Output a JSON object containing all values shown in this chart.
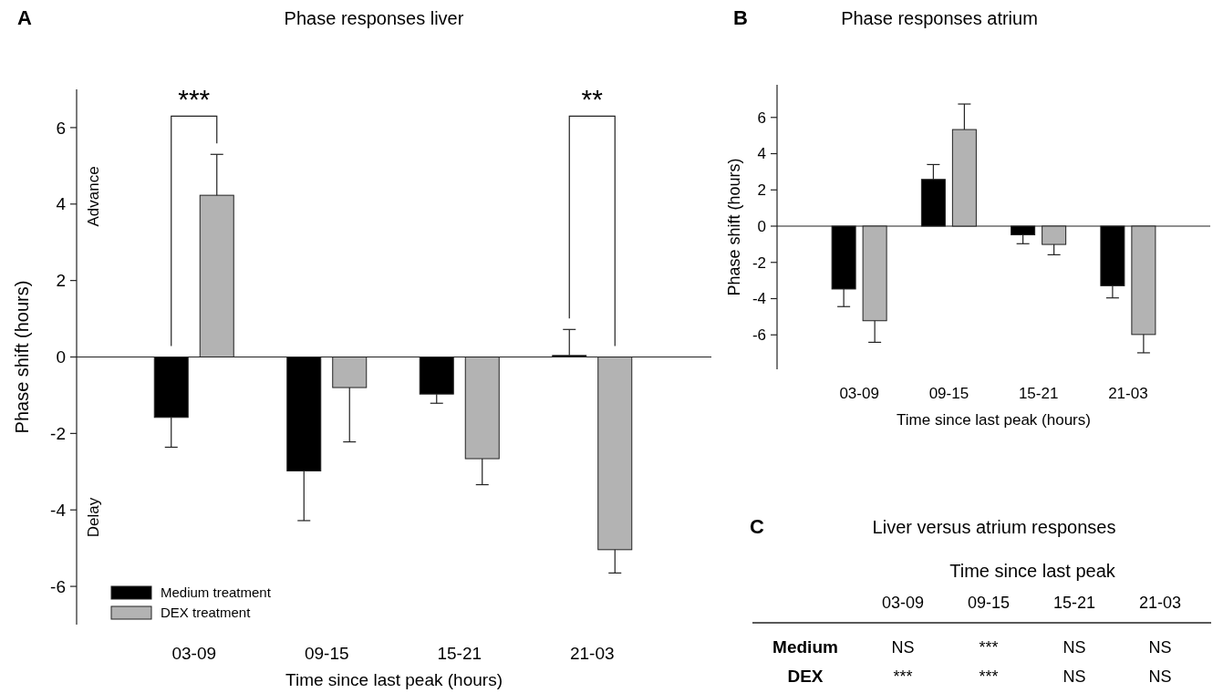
{
  "chart_data": [
    {
      "type": "bar",
      "title": "Phase responses liver",
      "xlabel": "Time since last peak (hours)",
      "ylabel": "Phase shift (hours)",
      "categories": [
        "03-09",
        "09-15",
        "15-21",
        "21-03"
      ],
      "series": [
        {
          "name": "Medium treatment",
          "color": "#000000",
          "values": [
            -1.58,
            -2.98,
            -0.97,
            0.04
          ],
          "errors": [
            [
              -2.36,
              -1.58
            ],
            [
              -4.28,
              -2.98
            ],
            [
              -1.21,
              -0.97
            ],
            [
              0.04,
              0.72
            ]
          ]
        },
        {
          "name": "DEX treatment",
          "color": "#b3b3b3",
          "values": [
            4.23,
            -0.8,
            -2.66,
            -5.04
          ],
          "errors": [
            [
              4.23,
              5.3
            ],
            [
              -2.22,
              -0.8
            ],
            [
              -3.34,
              -2.66
            ],
            [
              -5.65,
              -5.04
            ]
          ]
        }
      ],
      "ylim": [
        -7,
        7
      ],
      "yticks": [
        -6,
        -4,
        -2,
        0,
        2,
        4,
        6
      ],
      "legend": "bottom left",
      "annotations": [
        "A",
        "Advance",
        "Delay",
        "***",
        "**"
      ]
    },
    {
      "type": "bar",
      "title": "Phase responses atrium",
      "xlabel": "Time since last peak (hours)",
      "ylabel": "Phase shift (hours)",
      "categories": [
        "03-09",
        "09-15",
        "15-21",
        "21-03"
      ],
      "series": [
        {
          "color": "#000000",
          "values": [
            -3.47,
            2.58,
            -0.48,
            -3.29
          ],
          "errors": [
            [
              -4.44,
              -3.47
            ],
            [
              2.58,
              3.4
            ],
            [
              -0.97,
              -0.48
            ],
            [
              -3.96,
              -3.29
            ]
          ]
        },
        {
          "color": "#b3b3b3",
          "values": [
            -5.22,
            5.33,
            -1.01,
            -5.98
          ],
          "errors": [
            [
              -6.41,
              -5.22
            ],
            [
              5.33,
              6.74
            ],
            [
              -1.58,
              -1.01
            ],
            [
              -6.99,
              -5.98
            ]
          ]
        }
      ],
      "ylim": [
        -7.9,
        7.8
      ],
      "yticks": [
        -6,
        -4,
        -2,
        0,
        2,
        4,
        6
      ],
      "annotations": [
        "B"
      ]
    },
    {
      "type": "other",
      "title": "Liver versus atrium responses",
      "xlabel": "Time since last peak",
      "categories": [
        "03-09",
        "09-15",
        "15-21",
        "21-03"
      ],
      "y_categories": [
        "Medium",
        "DEX"
      ],
      "cell_labels": [
        [
          "NS",
          "***",
          "NS",
          "NS"
        ],
        [
          "***",
          "***",
          "NS",
          "NS"
        ]
      ],
      "annotations": [
        "C"
      ]
    }
  ]
}
